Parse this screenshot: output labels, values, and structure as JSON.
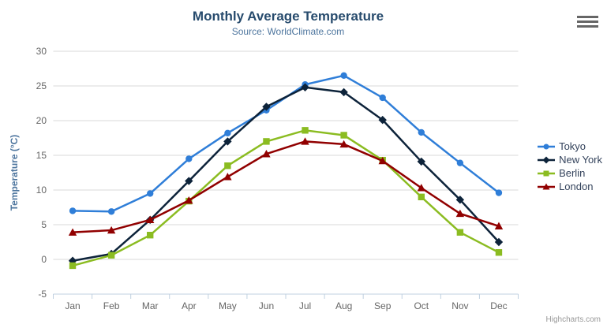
{
  "header": {
    "title": "Monthly Average Temperature",
    "subtitle": "Source: WorldClimate.com"
  },
  "export_menu_icon": "hamburger-menu-icon",
  "credits_label": "Highcharts.com",
  "colors": {
    "title": "#274b6d",
    "subtitle": "#4d759e",
    "axis_label": "#666666",
    "axis_title": "#4d759e",
    "grid_line": "#d8d8d8",
    "axis_line": "#c0d0e0",
    "legend_text": "#33425b",
    "credits_text": "#999999",
    "burger_icon": "#666666"
  },
  "chart_data": {
    "type": "line",
    "title": "Monthly Average Temperature",
    "subtitle": "Source: WorldClimate.com",
    "xlabel": "",
    "ylabel": "Temperature (°C)",
    "ylim": [
      -5,
      30
    ],
    "ytick_step": 5,
    "grid": true,
    "legend_position": "right",
    "categories": [
      "Jan",
      "Feb",
      "Mar",
      "Apr",
      "May",
      "Jun",
      "Jul",
      "Aug",
      "Sep",
      "Oct",
      "Nov",
      "Dec"
    ],
    "series": [
      {
        "name": "Tokyo",
        "color": "#2f7ed8",
        "marker": "circle",
        "values": [
          7.0,
          6.9,
          9.5,
          14.5,
          18.2,
          21.5,
          25.2,
          26.5,
          23.3,
          18.3,
          13.9,
          9.6
        ]
      },
      {
        "name": "New York",
        "color": "#0d233a",
        "marker": "diamond",
        "values": [
          -0.2,
          0.8,
          5.7,
          11.3,
          17.0,
          22.0,
          24.8,
          24.1,
          20.1,
          14.1,
          8.6,
          2.5
        ]
      },
      {
        "name": "Berlin",
        "color": "#8bbc21",
        "marker": "square",
        "values": [
          -0.9,
          0.6,
          3.5,
          8.4,
          13.5,
          17.0,
          18.6,
          17.9,
          14.3,
          9.0,
          3.9,
          1.0
        ]
      },
      {
        "name": "London",
        "color": "#910000",
        "marker": "triangle",
        "values": [
          3.9,
          4.2,
          5.7,
          8.5,
          11.9,
          15.2,
          17.0,
          16.6,
          14.2,
          10.3,
          6.6,
          4.8
        ]
      }
    ]
  }
}
